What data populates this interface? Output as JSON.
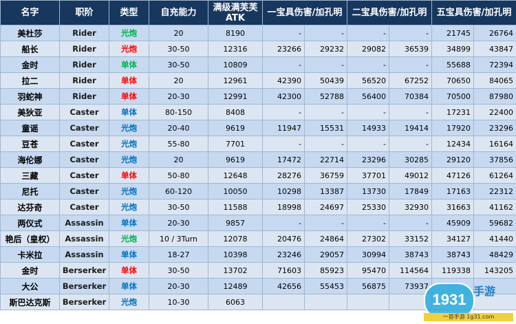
{
  "headers": [
    "名字",
    "职阶",
    "类型",
    "自充能力",
    "满级满芙芙 ATK",
    "一宝具伤害/加孔明",
    "二宝具伤害/加孔明",
    "五宝具伤害/加孔明"
  ],
  "colors": {
    "header_bg": "#17375e",
    "header_text": "#ffffff",
    "row_odd": "#c6d9f1",
    "row_even": "#dce6f2",
    "type_colors": {
      "光炮": "#00b050",
      "单体": "#0070c0"
    },
    "red": "#ff0000"
  },
  "rows": [
    {
      "name": "美杜莎",
      "cls": "Rider",
      "type": "光炮",
      "type_color": "#00b050",
      "np": "20",
      "atk": "8190",
      "np1": "-",
      "np1k": "-",
      "np2": "-",
      "np2k": "-",
      "np5": "21745",
      "np5k": "26764"
    },
    {
      "name": "船长",
      "cls": "Rider",
      "type": "光炮",
      "type_color": "#ff0000",
      "np": "30-50",
      "atk": "12316",
      "np1": "23266",
      "np1k": "29232",
      "np2": "29082",
      "np2k": "36539",
      "np5": "34899",
      "np5k": "43847"
    },
    {
      "name": "金时",
      "cls": "Rider",
      "type": "单体",
      "type_color": "#00b050",
      "np": "30-50",
      "atk": "10809",
      "np1": "-",
      "np1k": "-",
      "np2": "-",
      "np2k": "-",
      "np5": "55688",
      "np5k": "72394"
    },
    {
      "name": "拉二",
      "cls": "Rider",
      "type": "单体",
      "type_color": "#ff0000",
      "np": "20",
      "atk": "12961",
      "np1": "42390",
      "np1k": "50439",
      "np2": "56520",
      "np2k": "67252",
      "np5": "70650",
      "np5k": "84065"
    },
    {
      "name": "羽蛇神",
      "cls": "Rider",
      "type": "单体",
      "type_color": "#ff0000",
      "np": "20-30",
      "atk": "12991",
      "np1": "42300",
      "np1k": "52788",
      "np2": "56400",
      "np2k": "70384",
      "np5": "70500",
      "np5k": "87980"
    },
    {
      "name": "美狄亚",
      "cls": "Caster",
      "type": "单体",
      "type_color": "#0070c0",
      "np": "80-150",
      "atk": "8408",
      "np1": "-",
      "np1k": "-",
      "np2": "-",
      "np2k": "-",
      "np5": "17231",
      "np5k": "22400"
    },
    {
      "name": "童谣",
      "cls": "Caster",
      "type": "光炮",
      "type_color": "#0070c0",
      "np": "20-40",
      "atk": "9619",
      "np1": "11947",
      "np1k": "15531",
      "np2": "14933",
      "np2k": "19414",
      "np5": "17920",
      "np5k": "23296"
    },
    {
      "name": "豆苍",
      "cls": "Caster",
      "type": "光炮",
      "type_color": "#0070c0",
      "np": "55-80",
      "atk": "7701",
      "np1": "-",
      "np1k": "-",
      "np2": "-",
      "np2k": "-",
      "np5": "12434",
      "np5k": "16164"
    },
    {
      "name": "海伦娜",
      "cls": "Caster",
      "type": "光炮",
      "type_color": "#0070c0",
      "np": "20",
      "atk": "9619",
      "np1": "17472",
      "np1k": "22714",
      "np2": "23296",
      "np2k": "30285",
      "np5": "29120",
      "np5k": "37856"
    },
    {
      "name": "三藏",
      "cls": "Caster",
      "type": "单体",
      "type_color": "#ff0000",
      "np": "50-80",
      "atk": "12648",
      "np1": "28276",
      "np1k": "36759",
      "np2": "37701",
      "np2k": "49012",
      "np5": "47126",
      "np5k": "61264"
    },
    {
      "name": "尼托",
      "cls": "Caster",
      "type": "光炮",
      "type_color": "#0070c0",
      "np": "60-120",
      "atk": "10050",
      "np1": "10298",
      "np1k": "13387",
      "np2": "13730",
      "np2k": "17849",
      "np5": "17163",
      "np5k": "22312"
    },
    {
      "name": "达芬奇",
      "cls": "Caster",
      "type": "光炮",
      "type_color": "#0070c0",
      "np": "30-50",
      "atk": "11588",
      "np1": "18998",
      "np1k": "24697",
      "np2": "25330",
      "np2k": "32930",
      "np5": "31663",
      "np5k": "41162"
    },
    {
      "name": "两仪式",
      "cls": "Assassin",
      "type": "单体",
      "type_color": "#0070c0",
      "np": "20-30",
      "atk": "9857",
      "np1": "-",
      "np1k": "-",
      "np2": "-",
      "np2k": "-",
      "np5": "45909",
      "np5k": "59682"
    },
    {
      "name": "艳后（皇权）",
      "cls": "Assassin",
      "type": "光炮",
      "type_color": "#00b050",
      "np": "10 / 3Turn",
      "atk": "12078",
      "np1": "20476",
      "np1k": "24864",
      "np2": "27302",
      "np2k": "33152",
      "np5": "34127",
      "np5k": "41440"
    },
    {
      "name": "卡米拉",
      "cls": "Assassin",
      "type": "单体",
      "type_color": "#0070c0",
      "np": "18-27",
      "atk": "10398",
      "np1": "23246",
      "np1k": "29057",
      "np2": "30994",
      "np2k": "38743",
      "np5": "38743",
      "np5k": "48429"
    },
    {
      "name": "金时",
      "cls": "Berserker",
      "type": "单体",
      "type_color": "#ff0000",
      "np": "30-50",
      "atk": "13702",
      "np1": "71603",
      "np1k": "85923",
      "np2": "95470",
      "np2k": "114564",
      "np5": "119338",
      "np5k": "143205"
    },
    {
      "name": "大公",
      "cls": "Berserker",
      "type": "单体",
      "type_color": "#0070c0",
      "np": "20-30",
      "atk": "12489",
      "np1": "42656",
      "np1k": "55453",
      "np2": "56875",
      "np2k": "73937",
      "np5": "",
      "np5k": ""
    },
    {
      "name": "斯巴达克斯",
      "cls": "Berserker",
      "type": "光炮",
      "type_color": "#0070c0",
      "np": "10-30",
      "atk": "6063",
      "np1": "",
      "np1k": "",
      "np2": "",
      "np2k": "",
      "np5": "",
      "np5k": ""
    }
  ],
  "watermark": {
    "logo_text": "1931",
    "side_text": "手游",
    "url_text": "一首手游 1g31.com"
  }
}
